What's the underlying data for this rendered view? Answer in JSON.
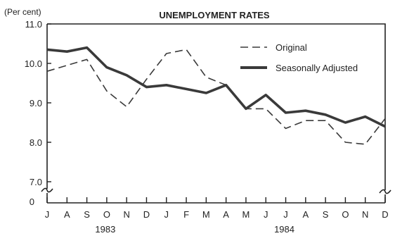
{
  "chart_data": {
    "type": "line",
    "title": "UNEMPLOYMENT RATES",
    "ylabel": "(Per cent)",
    "xlabel": "",
    "ylim": [
      7.0,
      11.0
    ],
    "y_ticks": [
      "11.0",
      "10.0",
      "9.0",
      "8.0",
      "7.0"
    ],
    "y_zero_label": "0",
    "axis_break": true,
    "categories": [
      "J",
      "A",
      "S",
      "O",
      "N",
      "D",
      "J",
      "F",
      "M",
      "A",
      "M",
      "J",
      "J",
      "A",
      "S",
      "O",
      "N",
      "D"
    ],
    "year_labels": [
      {
        "text": "1983",
        "category_index": 3
      },
      {
        "text": "1984",
        "category_index": 12
      }
    ],
    "series": [
      {
        "name": "Original",
        "style": "dashed",
        "values": [
          9.8,
          9.95,
          10.1,
          9.3,
          8.9,
          9.6,
          10.25,
          10.35,
          9.65,
          9.45,
          8.85,
          8.85,
          8.35,
          8.55,
          8.55,
          8.0,
          7.95,
          8.6
        ]
      },
      {
        "name": "Seasonally Adjusted",
        "style": "thick",
        "values": [
          10.35,
          10.3,
          10.4,
          9.9,
          9.7,
          9.4,
          9.45,
          9.35,
          9.25,
          9.45,
          8.85,
          9.2,
          8.75,
          8.8,
          8.7,
          8.5,
          8.65,
          8.4
        ]
      }
    ],
    "legend_position": "top-right",
    "grid": false,
    "colors": {
      "line": "#3a3a3a",
      "axis": "#222222",
      "background": "#ffffff"
    }
  }
}
